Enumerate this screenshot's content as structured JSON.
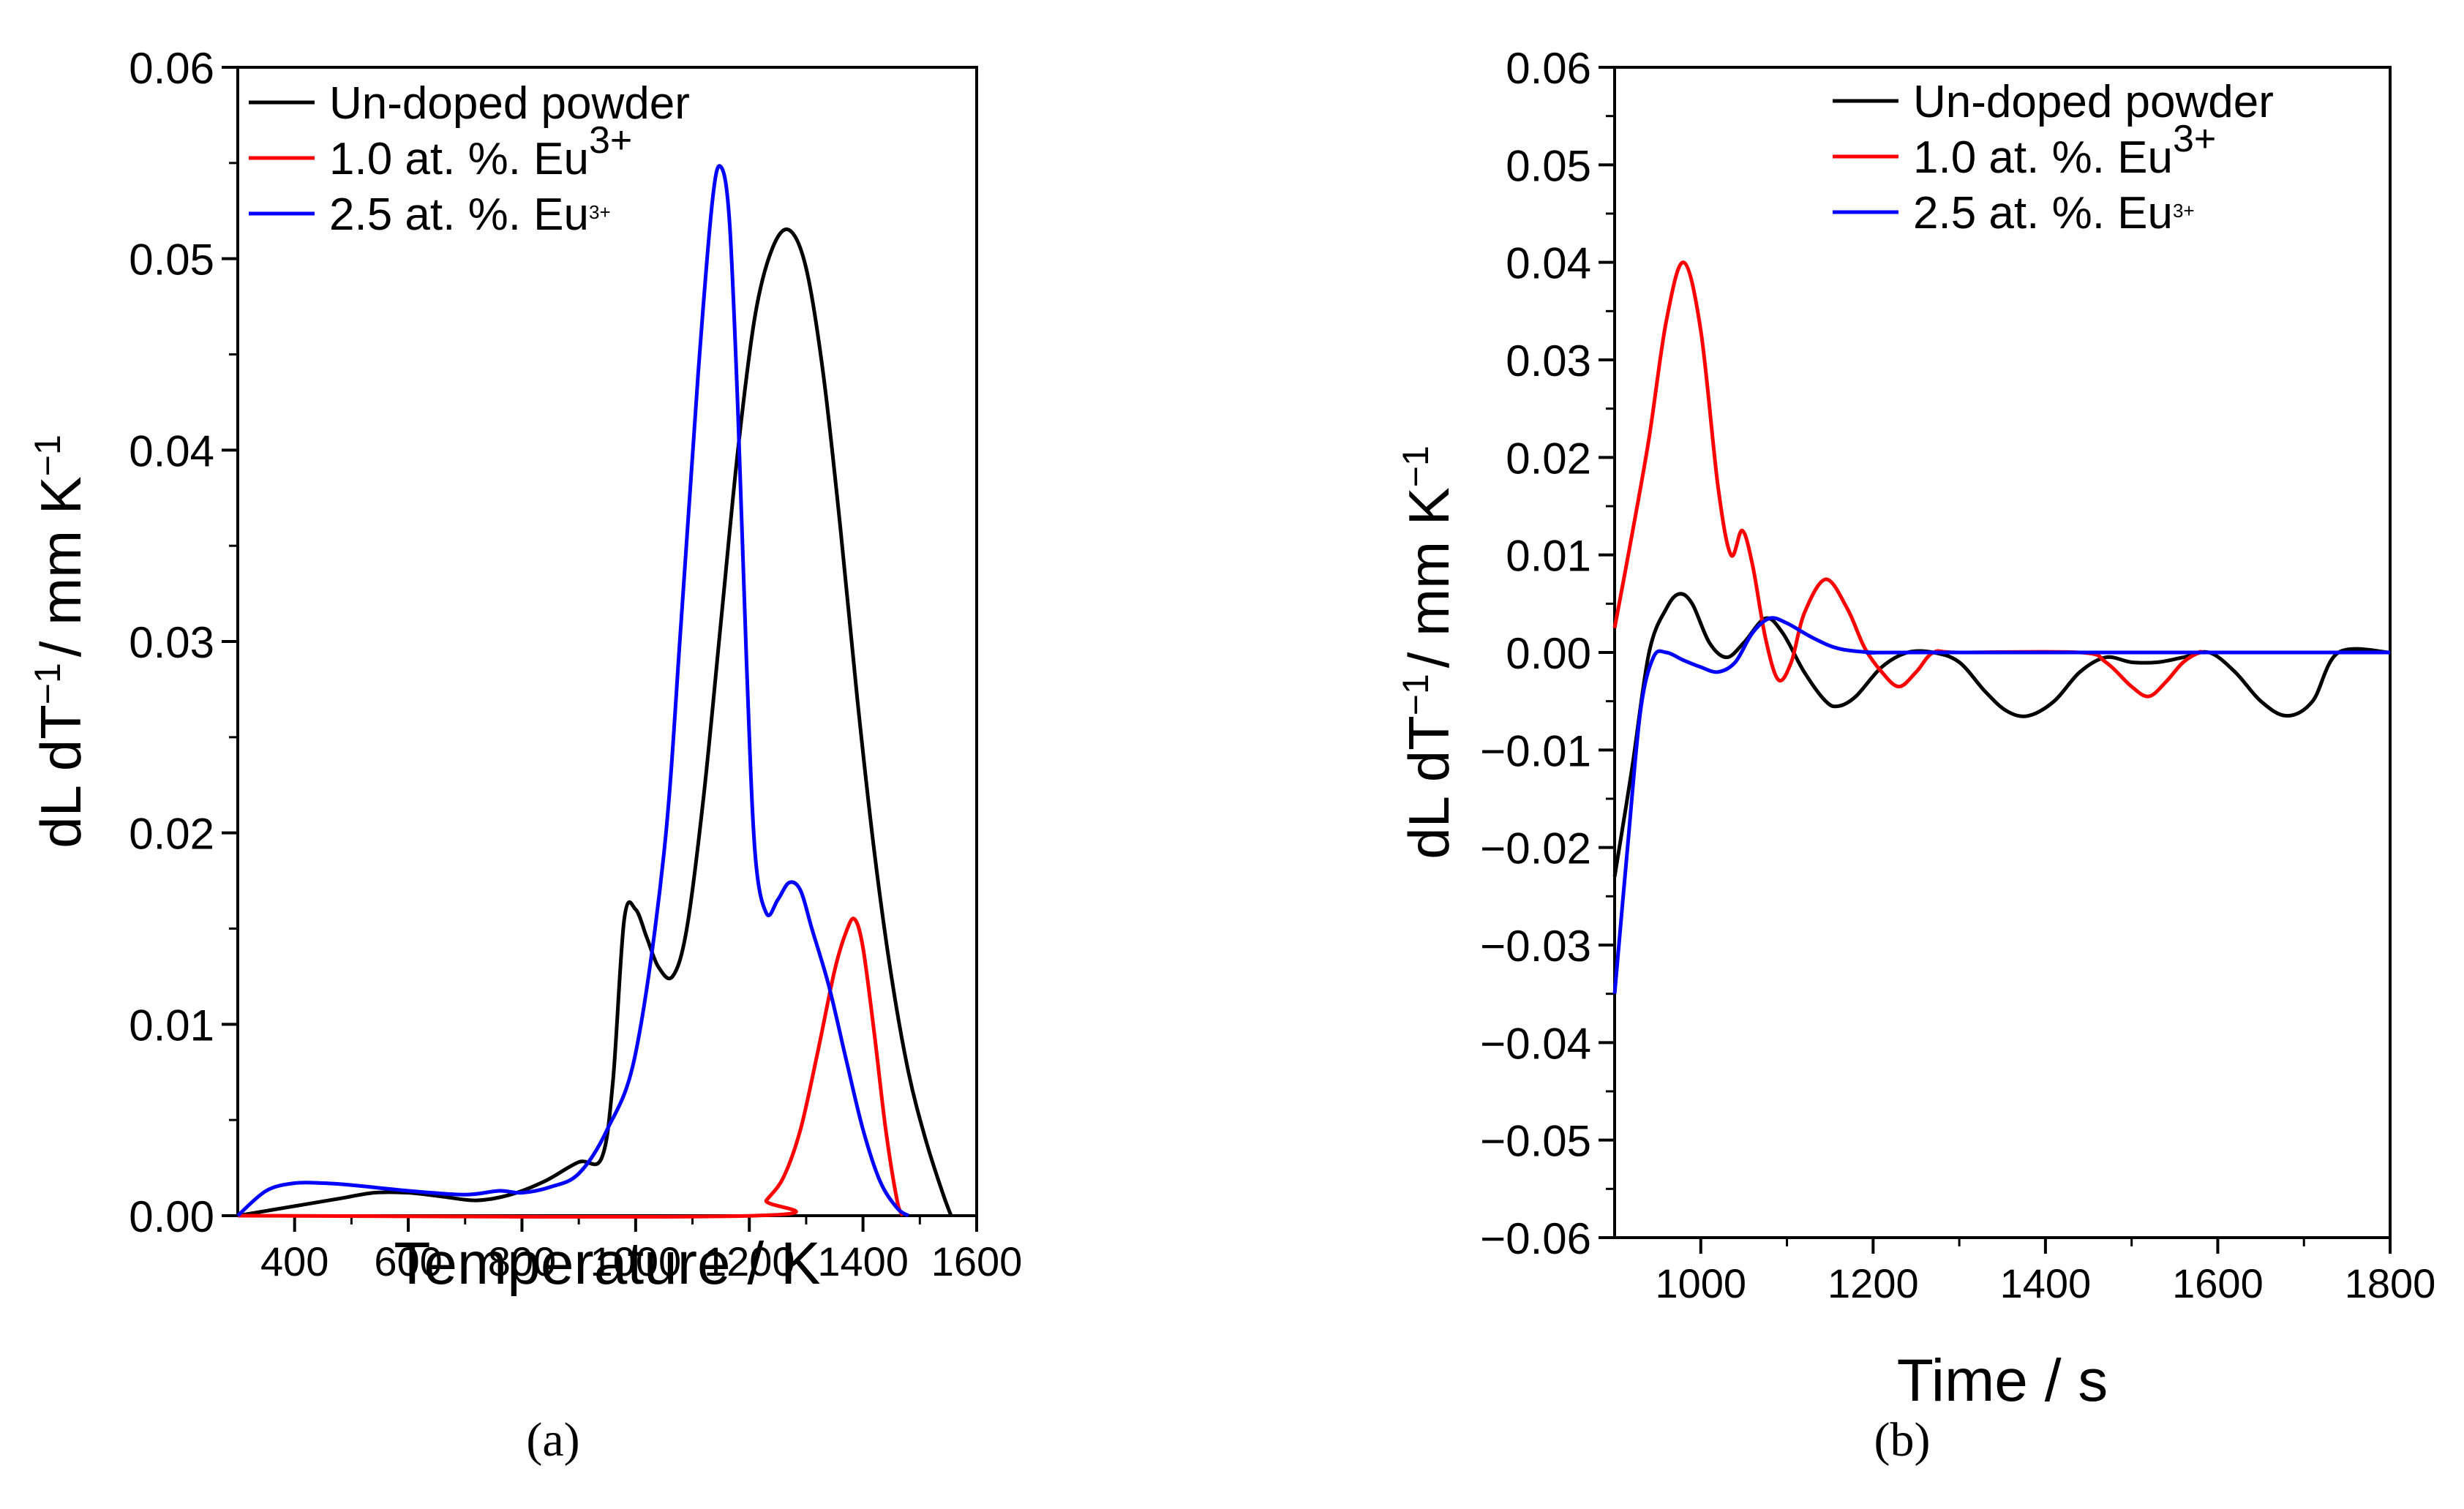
{
  "chart_data": [
    {
      "type": "line",
      "panel_label": "(a)",
      "title": "",
      "xlabel": "Temperature / K",
      "ylabel_parts": [
        "dL dT",
        "−1",
        "/ mm K",
        "−1"
      ],
      "xlim": [
        300,
        1600
      ],
      "ylim": [
        0,
        0.06
      ],
      "xticks": [
        400,
        600,
        800,
        1000,
        1200,
        1400,
        1600
      ],
      "xtick_labels": [
        "400",
        "600",
        "800",
        "1000",
        "1200",
        "1400",
        "1600"
      ],
      "yticks": [
        0,
        0.01,
        0.02,
        0.03,
        0.04,
        0.05,
        0.06
      ],
      "ytick_labels": [
        "0.00",
        "0.01",
        "0.02",
        "0.03",
        "0.04",
        "0.05",
        "0.06"
      ],
      "grid": false,
      "legend_position": "top-left",
      "series": [
        {
          "name": "Un-doped powder",
          "legend_text": "Un-doped powder",
          "legend_sup": "",
          "color": "#000000",
          "x": [
            300,
            360,
            420,
            480,
            540,
            600,
            660,
            720,
            780,
            840,
            900,
            940,
            960,
            980,
            1000,
            1020,
            1040,
            1065,
            1090,
            1120,
            1150,
            1180,
            1210,
            1240,
            1270,
            1300,
            1330,
            1360,
            1390,
            1420,
            1450,
            1480,
            1510,
            1540,
            1555
          ],
          "values": [
            0.0,
            0.0003,
            0.0006,
            0.0009,
            0.0012,
            0.0012,
            0.001,
            0.0008,
            0.0011,
            0.0018,
            0.0028,
            0.003,
            0.007,
            0.0155,
            0.016,
            0.0145,
            0.013,
            0.0125,
            0.015,
            0.022,
            0.031,
            0.04,
            0.047,
            0.0505,
            0.0515,
            0.0495,
            0.044,
            0.036,
            0.027,
            0.019,
            0.0125,
            0.0075,
            0.004,
            0.0012,
            0.0
          ]
        },
        {
          "name": "1.0 at. %. Eu3+",
          "legend_text": "1.0 at. %. Eu",
          "legend_sup": "3+",
          "color": "#ff0000",
          "x": [
            300,
            1210,
            1230,
            1260,
            1290,
            1320,
            1350,
            1370,
            1385,
            1400,
            1420,
            1440,
            1460,
            1470
          ],
          "values": [
            0.0,
            0.0,
            0.0008,
            0.002,
            0.0045,
            0.0085,
            0.0128,
            0.0148,
            0.0155,
            0.014,
            0.0095,
            0.0045,
            0.0008,
            0.0
          ]
        },
        {
          "name": "2.5 at. %. Eu3+",
          "legend_text": "2.5 at. %. Eu",
          "legend_sup": "3+",
          "color": "#0000ff",
          "x": [
            300,
            350,
            400,
            450,
            500,
            600,
            700,
            760,
            800,
            850,
            900,
            950,
            1000,
            1050,
            1080,
            1110,
            1135,
            1150,
            1165,
            1180,
            1195,
            1210,
            1230,
            1250,
            1270,
            1290,
            1310,
            1340,
            1370,
            1400,
            1430,
            1460,
            1480
          ],
          "values": [
            0.0,
            0.0013,
            0.0017,
            0.0017,
            0.0016,
            0.0013,
            0.0011,
            0.0013,
            0.0012,
            0.0015,
            0.0022,
            0.0045,
            0.0085,
            0.019,
            0.031,
            0.044,
            0.053,
            0.0548,
            0.052,
            0.042,
            0.029,
            0.019,
            0.0158,
            0.0165,
            0.0174,
            0.017,
            0.015,
            0.012,
            0.0082,
            0.0045,
            0.0018,
            0.0004,
            0.0
          ]
        }
      ]
    },
    {
      "type": "line",
      "panel_label": "(b)",
      "title": "",
      "xlabel": "Time / s",
      "ylabel_parts": [
        "dL dT",
        "−1",
        "/ mm K",
        "−1"
      ],
      "xlim": [
        900,
        1800
      ],
      "ylim": [
        -0.06,
        0.06
      ],
      "xticks": [
        1000,
        1200,
        1400,
        1600,
        1800
      ],
      "xtick_labels": [
        "1000",
        "1200",
        "1400",
        "1600",
        "1800"
      ],
      "yticks": [
        -0.06,
        -0.05,
        -0.04,
        -0.03,
        -0.02,
        -0.01,
        0,
        0.01,
        0.02,
        0.03,
        0.04,
        0.05,
        0.06
      ],
      "ytick_labels": [
        "−0.06",
        "−0.05",
        "−0.04",
        "−0.03",
        "−0.02",
        "−0.01",
        "0.00",
        "0.01",
        "0.02",
        "0.03",
        "0.04",
        "0.05",
        "0.06"
      ],
      "grid": false,
      "legend_position": "top-right",
      "series": [
        {
          "name": "Un-doped powder",
          "legend_text": "Un-doped powder",
          "legend_sup": "",
          "color": "#000000",
          "x": [
            900,
            920,
            940,
            960,
            975,
            990,
            1010,
            1030,
            1050,
            1075,
            1095,
            1120,
            1145,
            1160,
            1180,
            1210,
            1240,
            1270,
            1300,
            1330,
            1355,
            1380,
            1410,
            1440,
            1470,
            1500,
            1530,
            1560,
            1590,
            1620,
            1650,
            1680,
            1710,
            1740,
            1800
          ],
          "values": [
            -0.023,
            -0.012,
            0.0,
            0.0045,
            0.006,
            0.005,
            0.001,
            -0.0005,
            0.001,
            0.0035,
            0.002,
            -0.002,
            -0.005,
            -0.0055,
            -0.0045,
            -0.0015,
            0.0,
            0.0,
            -0.001,
            -0.004,
            -0.006,
            -0.0065,
            -0.005,
            -0.002,
            -0.0005,
            -0.001,
            -0.001,
            -0.0005,
            0.0,
            -0.002,
            -0.005,
            -0.0065,
            -0.005,
            0.0,
            0.0
          ]
        },
        {
          "name": "1.0 at. %. Eu3+",
          "legend_text": "1.0 at. %. Eu",
          "legend_sup": "3+",
          "color": "#ff0000",
          "x": [
            900,
            920,
            940,
            960,
            980,
            1000,
            1020,
            1035,
            1048,
            1060,
            1075,
            1090,
            1105,
            1120,
            1145,
            1170,
            1190,
            1210,
            1230,
            1250,
            1270,
            1300,
            1440,
            1470,
            1500,
            1520,
            1540,
            1560,
            1580,
            1600,
            1800
          ],
          "values": [
            0.0025,
            0.012,
            0.022,
            0.034,
            0.04,
            0.033,
            0.017,
            0.01,
            0.0125,
            0.009,
            0.0015,
            -0.0028,
            -0.001,
            0.004,
            0.0075,
            0.0045,
            0.0005,
            -0.002,
            -0.0035,
            -0.002,
            0.0,
            0.0,
            0.0,
            -0.001,
            -0.0035,
            -0.0045,
            -0.003,
            -0.001,
            0.0,
            0.0,
            0.0
          ]
        },
        {
          "name": "2.5 at. %. Eu3+",
          "legend_text": "2.5 at. %. Eu",
          "legend_sup": "3+",
          "color": "#0000ff",
          "x": [
            900,
            915,
            930,
            945,
            960,
            980,
            1000,
            1020,
            1040,
            1060,
            1080,
            1100,
            1130,
            1160,
            1200,
            1250,
            1800
          ],
          "values": [
            -0.035,
            -0.02,
            -0.006,
            -0.0005,
            0.0,
            -0.0008,
            -0.0015,
            -0.002,
            -0.001,
            0.002,
            0.0035,
            0.003,
            0.0015,
            0.0004,
            0.0,
            0.0,
            0.0
          ]
        }
      ]
    }
  ]
}
